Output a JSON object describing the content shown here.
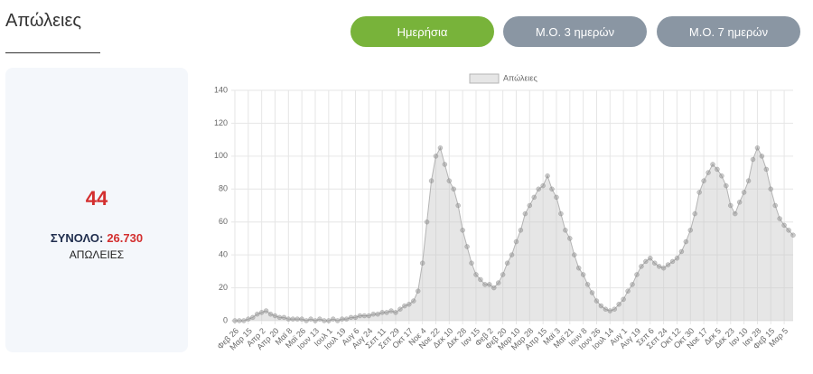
{
  "header": {
    "title": "Απώλειες",
    "buttons": [
      "Ημερήσια",
      "Μ.Ο. 3 ημερών",
      "Μ.Ο. 7 ημερών"
    ]
  },
  "card": {
    "value": "44",
    "total_label": "ΣΥΝΟΛΟ:",
    "total": "26.730",
    "caption": "ΑΠΩΛΕΙΕΣ"
  },
  "chart_data": {
    "type": "line",
    "legend": "top",
    "categories": [
      "Φεβ 26",
      null,
      null,
      "Μαρ 15",
      null,
      null,
      "Απρ 2",
      null,
      null,
      "Απρ 20",
      null,
      null,
      "Μαϊ 8",
      null,
      null,
      "Μαϊ 26",
      null,
      null,
      "Ιουν 13",
      null,
      null,
      "Ιουλ 1",
      null,
      null,
      "Ιουλ 19",
      null,
      null,
      "Αυγ 6",
      null,
      null,
      "Αυγ 24",
      null,
      null,
      "Σεπ 11",
      null,
      null,
      "Σεπ 29",
      null,
      null,
      "Οκτ 17",
      null,
      null,
      "Νοε 4",
      null,
      null,
      "Νοε 22",
      null,
      null,
      "Δεκ 10",
      null,
      null,
      "Δεκ 28",
      null,
      null,
      "Ιαν 15",
      null,
      null,
      "Φεβ 2",
      null,
      null,
      "Φεβ 20",
      null,
      null,
      "Μαρ 10",
      null,
      null,
      "Μαρ 28",
      null,
      null,
      "Απρ 15",
      null,
      null,
      "Μαϊ 3",
      null,
      null,
      "Μαϊ 21",
      null,
      null,
      "Ιουν 8",
      null,
      null,
      "Ιουν 26",
      null,
      null,
      "Ιουλ 14",
      null,
      null,
      "Αυγ 1",
      null,
      null,
      "Αυγ 19",
      null,
      null,
      "Σεπ 6",
      null,
      null,
      "Σεπ 24",
      null,
      null,
      "Οκτ 12",
      null,
      null,
      "Οκτ 30",
      null,
      null,
      "Νοε 17",
      null,
      null,
      "Δεκ 5",
      null,
      null,
      "Δεκ 23",
      null,
      null,
      "Ιαν 10",
      null,
      null,
      "Ιαν 28",
      null,
      null,
      "Φεβ 15",
      null,
      null,
      "Μαρ 5",
      null,
      null
    ],
    "series": [
      {
        "name": "Απώλειες",
        "color": "#b4b4b4",
        "values": [
          0,
          0,
          0,
          1,
          2,
          4,
          5,
          6,
          4,
          3,
          2,
          2,
          1,
          1,
          1,
          1,
          0,
          1,
          0,
          1,
          0,
          0,
          1,
          0,
          1,
          1,
          2,
          2,
          3,
          3,
          3,
          4,
          4,
          5,
          5,
          6,
          5,
          7,
          9,
          10,
          12,
          18,
          35,
          60,
          85,
          100,
          105,
          95,
          85,
          80,
          70,
          55,
          45,
          35,
          28,
          25,
          22,
          22,
          20,
          23,
          28,
          35,
          40,
          48,
          55,
          65,
          70,
          75,
          80,
          82,
          88,
          80,
          75,
          65,
          55,
          50,
          40,
          32,
          28,
          22,
          17,
          12,
          9,
          7,
          6,
          7,
          10,
          13,
          18,
          22,
          28,
          33,
          36,
          38,
          35,
          33,
          32,
          34,
          36,
          38,
          42,
          48,
          55,
          65,
          78,
          85,
          90,
          95,
          92,
          88,
          82,
          70,
          65,
          72,
          78,
          85,
          98,
          105,
          100,
          92,
          80,
          70,
          62,
          58,
          55,
          52
        ]
      }
    ],
    "ylim": [
      0,
      140
    ],
    "yticks": [
      0,
      20,
      40,
      60,
      80,
      100,
      120,
      140
    ],
    "grid": true
  }
}
